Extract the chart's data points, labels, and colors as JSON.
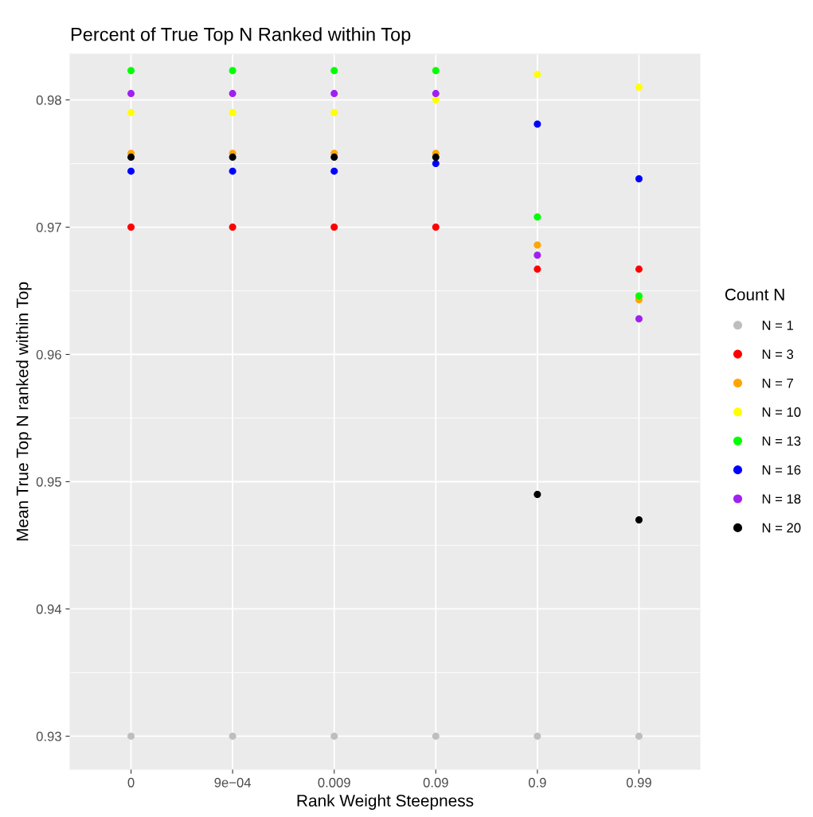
{
  "chart_data": {
    "type": "scatter",
    "title": "Percent of True Top N Ranked within Top",
    "xlabel": "Rank Weight Steepness",
    "ylabel": "Mean True Top N ranked within Top",
    "legend_title": "Count N",
    "categories": [
      "0",
      "9e−04",
      "0.009",
      "0.09",
      "0.9",
      "0.99"
    ],
    "series": [
      {
        "name": "N = 1",
        "color": "#bebebe",
        "values": [
          0.93,
          0.93,
          0.93,
          0.93,
          0.93,
          0.93
        ]
      },
      {
        "name": "N = 3",
        "color": "#ff0000",
        "values": [
          0.97,
          0.97,
          0.97,
          0.97,
          0.9667,
          0.9667
        ]
      },
      {
        "name": "N = 7",
        "color": "#ffa500",
        "values": [
          0.9758,
          0.9758,
          0.9758,
          0.9758,
          0.9686,
          0.9643
        ]
      },
      {
        "name": "N = 10",
        "color": "#ffff00",
        "values": [
          0.979,
          0.979,
          0.979,
          0.98,
          0.982,
          0.981
        ]
      },
      {
        "name": "N = 13",
        "color": "#00ff00",
        "values": [
          0.9823,
          0.9823,
          0.9823,
          0.9823,
          0.9708,
          0.9646
        ]
      },
      {
        "name": "N = 16",
        "color": "#0000ff",
        "values": [
          0.9744,
          0.9744,
          0.9744,
          0.975,
          0.9781,
          0.9738
        ]
      },
      {
        "name": "N = 18",
        "color": "#a020f0",
        "values": [
          0.9805,
          0.9805,
          0.9805,
          0.9805,
          0.9678,
          0.9628
        ]
      },
      {
        "name": "N = 20",
        "color": "#000000",
        "values": [
          0.9755,
          0.9755,
          0.9755,
          0.9755,
          0.949,
          0.947
        ]
      }
    ],
    "ylim": [
      0.9274,
      0.9836
    ],
    "yticks": [
      0.93,
      0.94,
      0.95,
      0.96,
      0.97,
      0.98
    ],
    "grid": true,
    "legend": "right",
    "marker": "circle"
  }
}
